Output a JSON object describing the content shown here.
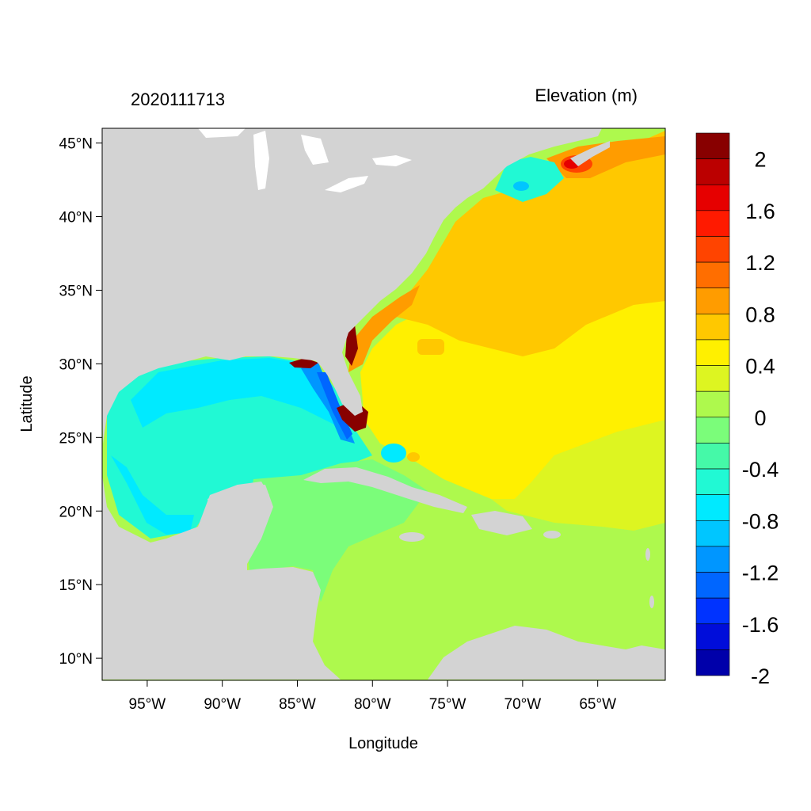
{
  "header": {
    "timestamp": "2020111713",
    "variable": "Elevation (m)"
  },
  "axes": {
    "xlabel": "Longitude",
    "ylabel": "Latitude",
    "lon_range": [
      -98,
      -60.5
    ],
    "lat_range": [
      8.5,
      46
    ],
    "x_ticks": [
      {
        "value": -95,
        "label": "95°W"
      },
      {
        "value": -90,
        "label": "90°W"
      },
      {
        "value": -85,
        "label": "85°W"
      },
      {
        "value": -80,
        "label": "80°W"
      },
      {
        "value": -75,
        "label": "75°W"
      },
      {
        "value": -70,
        "label": "70°W"
      },
      {
        "value": -65,
        "label": "65°W"
      }
    ],
    "y_ticks": [
      {
        "value": 45,
        "label": "45°N"
      },
      {
        "value": 40,
        "label": "40°N"
      },
      {
        "value": 35,
        "label": "35°N"
      },
      {
        "value": 30,
        "label": "30°N"
      },
      {
        "value": 25,
        "label": "25°N"
      },
      {
        "value": 20,
        "label": "20°N"
      },
      {
        "value": 15,
        "label": "15°N"
      },
      {
        "value": 10,
        "label": "10°N"
      }
    ]
  },
  "colorbar": {
    "colors": [
      "#880000",
      "#bb0000",
      "#e60000",
      "#ff1a00",
      "#ff4400",
      "#ff6e00",
      "#ff9c00",
      "#ffc800",
      "#fff000",
      "#ddf521",
      "#aef94d",
      "#7bfd7a",
      "#45f9a8",
      "#21f9d4",
      "#00eaff",
      "#00c6ff",
      "#0096ff",
      "#0066ff",
      "#0033ff",
      "#000dda",
      "#0000aa"
    ],
    "labels": [
      "2",
      "1.6",
      "1.2",
      "0.8",
      "0.4",
      "0",
      "-0.4",
      "-0.8",
      "-1.2",
      "-1.6",
      "-2"
    ]
  },
  "map_colors": {
    "land": "#d3d3d3",
    "lakes": "#ffffff"
  }
}
